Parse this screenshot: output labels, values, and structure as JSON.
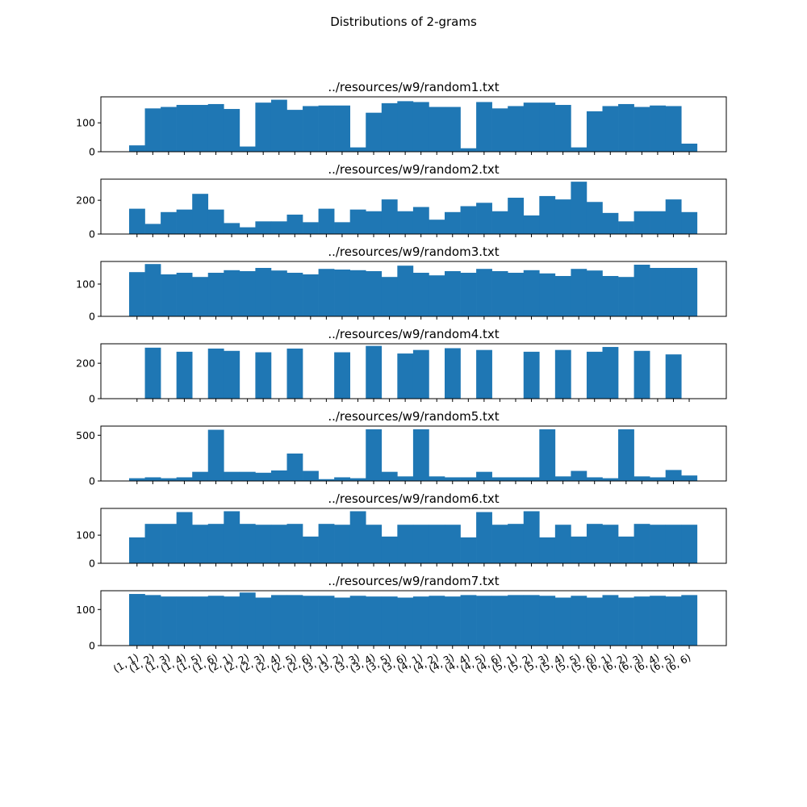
{
  "figure": {
    "suptitle": "Distributions of 2-grams",
    "bar_color": "#1f77b4"
  },
  "chart_data": [
    {
      "type": "bar",
      "title": "../resources/w9/random1.txt",
      "categories": [
        "(1, 1)",
        "(1, 2)",
        "(1, 3)",
        "(1, 4)",
        "(1, 5)",
        "(1, 6)",
        "(2, 1)",
        "(2, 2)",
        "(2, 3)",
        "(2, 4)",
        "(2, 5)",
        "(2, 6)",
        "(3, 1)",
        "(3, 2)",
        "(3, 3)",
        "(3, 4)",
        "(3, 5)",
        "(3, 6)",
        "(4, 1)",
        "(4, 2)",
        "(4, 3)",
        "(4, 4)",
        "(4, 5)",
        "(4, 6)",
        "(5, 1)",
        "(5, 2)",
        "(5, 3)",
        "(5, 4)",
        "(5, 5)",
        "(5, 6)",
        "(6, 1)",
        "(6, 2)",
        "(6, 3)",
        "(6, 4)",
        "(6, 5)",
        "(6, 6)"
      ],
      "values": [
        22,
        150,
        155,
        162,
        162,
        165,
        148,
        18,
        170,
        180,
        145,
        158,
        160,
        160,
        15,
        135,
        168,
        175,
        172,
        155,
        155,
        12,
        172,
        150,
        158,
        170,
        170,
        162,
        15,
        140,
        158,
        165,
        155,
        160,
        158,
        28
      ],
      "ylim": [
        0,
        190
      ],
      "yticks": [
        0,
        100
      ]
    },
    {
      "type": "bar",
      "title": "../resources/w9/random2.txt",
      "categories": [
        "(1, 1)",
        "(1, 2)",
        "(1, 3)",
        "(1, 4)",
        "(1, 5)",
        "(1, 6)",
        "(2, 1)",
        "(2, 2)",
        "(2, 3)",
        "(2, 4)",
        "(2, 5)",
        "(2, 6)",
        "(3, 1)",
        "(3, 2)",
        "(3, 3)",
        "(3, 4)",
        "(3, 5)",
        "(3, 6)",
        "(4, 1)",
        "(4, 2)",
        "(4, 3)",
        "(4, 4)",
        "(4, 5)",
        "(4, 6)",
        "(5, 1)",
        "(5, 2)",
        "(5, 3)",
        "(5, 4)",
        "(5, 5)",
        "(5, 6)",
        "(6, 1)",
        "(6, 2)",
        "(6, 3)",
        "(6, 4)",
        "(6, 5)",
        "(6, 6)"
      ],
      "values": [
        150,
        60,
        130,
        145,
        238,
        145,
        65,
        40,
        75,
        75,
        115,
        70,
        150,
        70,
        145,
        135,
        205,
        135,
        160,
        85,
        130,
        165,
        185,
        135,
        215,
        110,
        225,
        205,
        310,
        190,
        125,
        75,
        135,
        135,
        205,
        130
      ],
      "ylim": [
        0,
        325
      ],
      "yticks": [
        0,
        200
      ]
    },
    {
      "type": "bar",
      "title": "../resources/w9/random3.txt",
      "categories": [
        "(1, 1)",
        "(1, 2)",
        "(1, 3)",
        "(1, 4)",
        "(1, 5)",
        "(1, 6)",
        "(2, 1)",
        "(2, 2)",
        "(2, 3)",
        "(2, 4)",
        "(2, 5)",
        "(2, 6)",
        "(3, 1)",
        "(3, 2)",
        "(3, 3)",
        "(3, 4)",
        "(3, 5)",
        "(3, 6)",
        "(4, 1)",
        "(4, 2)",
        "(4, 3)",
        "(4, 4)",
        "(4, 5)",
        "(4, 6)",
        "(5, 1)",
        "(5, 2)",
        "(5, 3)",
        "(5, 4)",
        "(5, 5)",
        "(5, 6)",
        "(6, 1)",
        "(6, 2)",
        "(6, 3)",
        "(6, 4)",
        "(6, 5)",
        "(6, 6)"
      ],
      "values": [
        137,
        162,
        130,
        135,
        122,
        135,
        143,
        140,
        150,
        142,
        135,
        130,
        147,
        145,
        143,
        140,
        122,
        157,
        135,
        127,
        140,
        135,
        147,
        140,
        135,
        143,
        133,
        125,
        147,
        142,
        125,
        122,
        160,
        150,
        150,
        150
      ],
      "ylim": [
        0,
        170
      ],
      "yticks": [
        0,
        100
      ]
    },
    {
      "type": "bar",
      "title": "../resources/w9/random4.txt",
      "categories": [
        "(1, 1)",
        "(1, 2)",
        "(1, 3)",
        "(1, 4)",
        "(1, 5)",
        "(1, 6)",
        "(2, 1)",
        "(2, 2)",
        "(2, 3)",
        "(2, 4)",
        "(2, 5)",
        "(2, 6)",
        "(3, 1)",
        "(3, 2)",
        "(3, 3)",
        "(3, 4)",
        "(3, 5)",
        "(3, 6)",
        "(4, 1)",
        "(4, 2)",
        "(4, 3)",
        "(4, 4)",
        "(4, 5)",
        "(4, 6)",
        "(5, 1)",
        "(5, 2)",
        "(5, 3)",
        "(5, 4)",
        "(5, 5)",
        "(5, 6)",
        "(6, 1)",
        "(6, 2)",
        "(6, 3)",
        "(6, 4)",
        "(6, 5)",
        "(6, 6)"
      ],
      "values": [
        0,
        288,
        0,
        265,
        0,
        283,
        270,
        0,
        262,
        0,
        283,
        0,
        0,
        262,
        0,
        298,
        0,
        255,
        275,
        0,
        285,
        0,
        275,
        0,
        0,
        265,
        0,
        275,
        0,
        265,
        292,
        0,
        270,
        0,
        250,
        0
      ],
      "ylim": [
        0,
        310
      ],
      "yticks": [
        0,
        200
      ]
    },
    {
      "type": "bar",
      "title": "../resources/w9/random5.txt",
      "categories": [
        "(1, 1)",
        "(1, 2)",
        "(1, 3)",
        "(1, 4)",
        "(1, 5)",
        "(1, 6)",
        "(2, 1)",
        "(2, 2)",
        "(2, 3)",
        "(2, 4)",
        "(2, 5)",
        "(2, 6)",
        "(3, 1)",
        "(3, 2)",
        "(3, 3)",
        "(3, 4)",
        "(3, 5)",
        "(3, 6)",
        "(4, 1)",
        "(4, 2)",
        "(4, 3)",
        "(4, 4)",
        "(4, 5)",
        "(4, 6)",
        "(5, 1)",
        "(5, 2)",
        "(5, 3)",
        "(5, 4)",
        "(5, 5)",
        "(5, 6)",
        "(6, 1)",
        "(6, 2)",
        "(6, 3)",
        "(6, 4)",
        "(6, 5)",
        "(6, 6)"
      ],
      "values": [
        30,
        40,
        30,
        40,
        100,
        560,
        100,
        100,
        90,
        115,
        300,
        110,
        20,
        40,
        30,
        565,
        100,
        50,
        565,
        50,
        40,
        40,
        100,
        40,
        40,
        40,
        565,
        50,
        110,
        40,
        30,
        565,
        50,
        40,
        120,
        60
      ],
      "ylim": [
        0,
        600
      ],
      "yticks": [
        0,
        500
      ]
    },
    {
      "type": "bar",
      "title": "../resources/w9/random6.txt",
      "categories": [
        "(1, 1)",
        "(1, 2)",
        "(1, 3)",
        "(1, 4)",
        "(1, 5)",
        "(1, 6)",
        "(2, 1)",
        "(2, 2)",
        "(2, 3)",
        "(2, 4)",
        "(2, 5)",
        "(2, 6)",
        "(3, 1)",
        "(3, 2)",
        "(3, 3)",
        "(3, 4)",
        "(3, 5)",
        "(3, 6)",
        "(4, 1)",
        "(4, 2)",
        "(4, 3)",
        "(4, 4)",
        "(4, 5)",
        "(4, 6)",
        "(5, 1)",
        "(5, 2)",
        "(5, 3)",
        "(5, 4)",
        "(5, 5)",
        "(5, 6)",
        "(6, 1)",
        "(6, 2)",
        "(6, 3)",
        "(6, 4)",
        "(6, 5)",
        "(6, 6)"
      ],
      "values": [
        92,
        140,
        140,
        182,
        137,
        140,
        185,
        140,
        137,
        137,
        140,
        95,
        140,
        137,
        185,
        137,
        95,
        137,
        137,
        137,
        137,
        92,
        182,
        137,
        140,
        185,
        92,
        137,
        95,
        140,
        137,
        95,
        140,
        137,
        137,
        137
      ],
      "ylim": [
        0,
        195
      ],
      "yticks": [
        0,
        100
      ]
    },
    {
      "type": "bar",
      "title": "../resources/w9/random7.txt",
      "categories": [
        "(1, 1)",
        "(1, 2)",
        "(1, 3)",
        "(1, 4)",
        "(1, 5)",
        "(1, 6)",
        "(2, 1)",
        "(2, 2)",
        "(2, 3)",
        "(2, 4)",
        "(2, 5)",
        "(2, 6)",
        "(3, 1)",
        "(3, 2)",
        "(3, 3)",
        "(3, 4)",
        "(3, 5)",
        "(3, 6)",
        "(4, 1)",
        "(4, 2)",
        "(4, 3)",
        "(4, 4)",
        "(4, 5)",
        "(4, 6)",
        "(5, 1)",
        "(5, 2)",
        "(5, 3)",
        "(5, 4)",
        "(5, 5)",
        "(5, 6)",
        "(6, 1)",
        "(6, 2)",
        "(6, 3)",
        "(6, 4)",
        "(6, 5)",
        "(6, 6)"
      ],
      "values": [
        143,
        140,
        136,
        136,
        136,
        138,
        136,
        147,
        133,
        140,
        140,
        138,
        138,
        133,
        138,
        136,
        136,
        133,
        136,
        138,
        136,
        140,
        138,
        138,
        140,
        140,
        138,
        133,
        138,
        133,
        140,
        133,
        136,
        138,
        136,
        140
      ],
      "ylim": [
        0,
        152
      ],
      "yticks": [
        0,
        100
      ]
    }
  ]
}
